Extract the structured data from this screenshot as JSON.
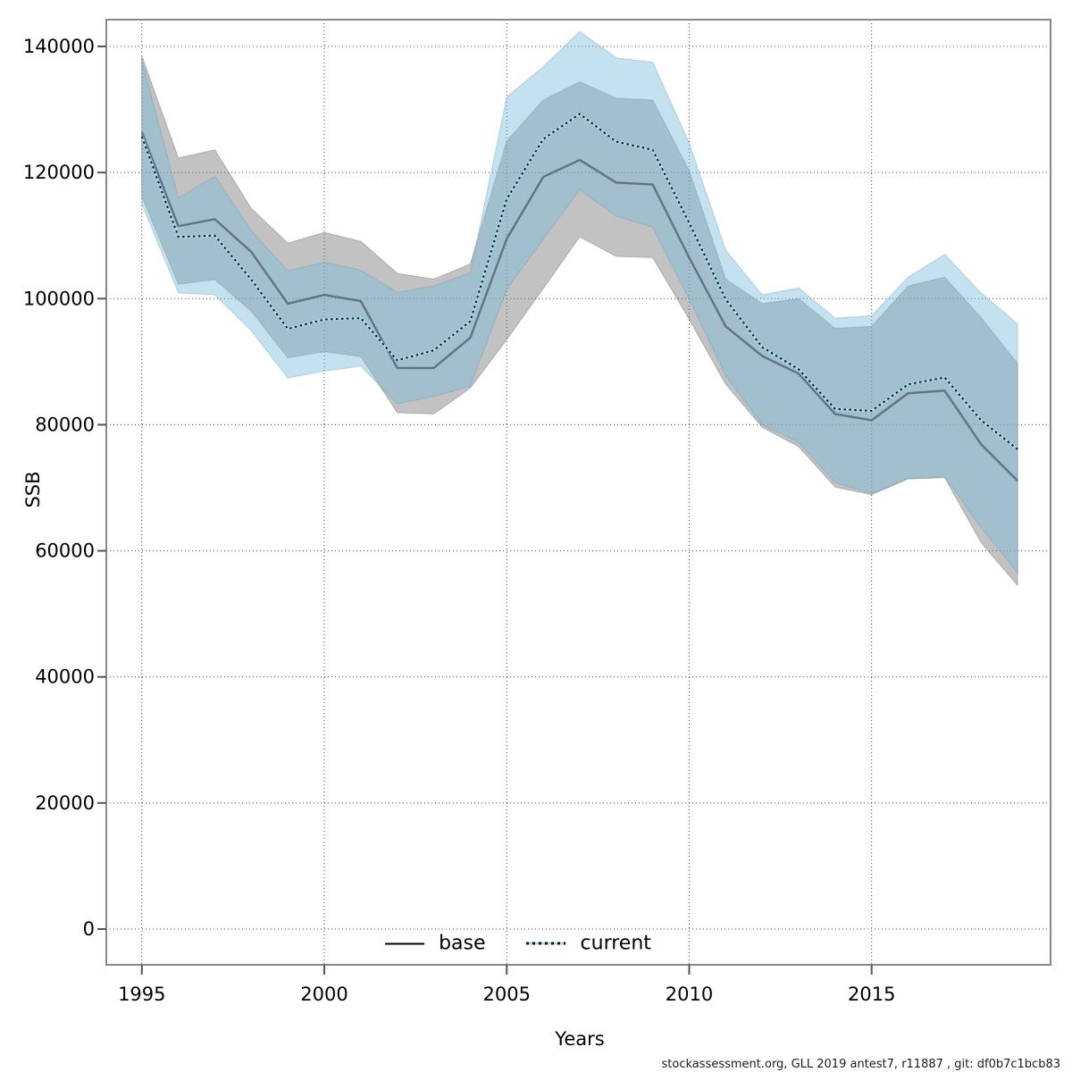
{
  "figure": {
    "caption": "stockassessment.org, GLL 2019 antest7, r11887 , git: df0b7c1bcb83"
  },
  "chart_data": {
    "type": "line",
    "title": "",
    "xlabel": "Years",
    "ylabel": "SSB",
    "grid": true,
    "legend_position": "bottom-center",
    "xlim": [
      1994,
      2020
    ],
    "ylim": [
      0,
      144000
    ],
    "x_ticks": [
      1995,
      2000,
      2005,
      2010,
      2015
    ],
    "y_ticks": [
      0,
      20000,
      40000,
      60000,
      80000,
      100000,
      120000,
      140000
    ],
    "years": [
      1995,
      1996,
      1997,
      1998,
      1999,
      2000,
      2001,
      2002,
      2003,
      2004,
      2005,
      2006,
      2007,
      2008,
      2009,
      2010,
      2011,
      2012,
      2013,
      2014,
      2015,
      2016,
      2017,
      2018,
      2019
    ],
    "series": [
      {
        "name": "base",
        "style": "solid",
        "values": [
          126400,
          111500,
          112600,
          107400,
          99200,
          100600,
          99600,
          89000,
          89000,
          93800,
          109500,
          119300,
          122000,
          118400,
          118100,
          106500,
          95600,
          90900,
          88100,
          81700,
          80700,
          85000,
          85400,
          76900,
          71100
        ],
        "ci_low": [
          116200,
          102300,
          103000,
          98000,
          90600,
          91600,
          90800,
          81900,
          81700,
          85800,
          93500,
          101600,
          109800,
          106700,
          106500,
          96700,
          86400,
          79600,
          76500,
          70100,
          68900,
          71400,
          71600,
          61300,
          54500
        ],
        "ci_high": [
          138500,
          122300,
          123600,
          114300,
          108800,
          110500,
          109100,
          104000,
          103100,
          105500,
          125000,
          131500,
          134400,
          131800,
          131500,
          120300,
          103100,
          99200,
          100000,
          95300,
          95600,
          102000,
          103400,
          97000,
          89700
        ]
      },
      {
        "name": "current",
        "style": "dotted",
        "values": [
          125700,
          109800,
          110000,
          103000,
          95200,
          96700,
          96900,
          90200,
          91800,
          96400,
          115800,
          125300,
          129300,
          124900,
          123600,
          112000,
          99900,
          92300,
          88800,
          82500,
          82200,
          86400,
          87500,
          80700,
          76100
        ],
        "ci_low": [
          115000,
          100900,
          100600,
          94900,
          87400,
          88500,
          89300,
          83300,
          84500,
          86100,
          101500,
          109400,
          117300,
          113100,
          111300,
          99900,
          87800,
          80000,
          77200,
          70800,
          69100,
          71500,
          71800,
          63700,
          56500
        ],
        "ci_high": [
          137800,
          116000,
          119400,
          110800,
          104400,
          105800,
          104500,
          101000,
          102000,
          104100,
          132000,
          136800,
          142400,
          138200,
          137500,
          124700,
          107700,
          100600,
          101700,
          96900,
          97300,
          103400,
          107000,
          100900,
          96000
        ]
      }
    ],
    "colors": {
      "base_band": "rgba(120,120,120,0.45)",
      "current_band": "rgba(124,189,221,0.45)",
      "base_line_plot": "#5f7480",
      "base_line_legend": "#000000",
      "current_line_under": "#a5d8ee",
      "current_line_dash": "#111111",
      "grid": "#000000",
      "axis": "#888888",
      "tick": "#555555",
      "text": "#000000"
    }
  }
}
